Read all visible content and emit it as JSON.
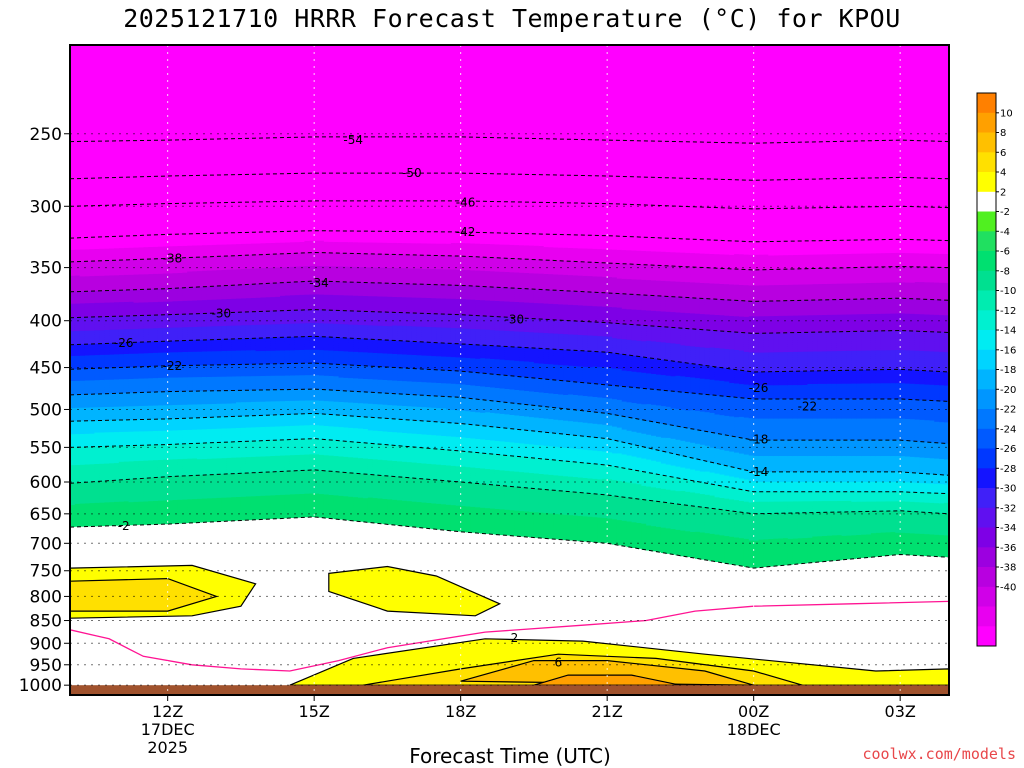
{
  "colors": {
    "bands_low_to_high": [
      "#ff00ff",
      "#e800f0",
      "#d000e8",
      "#b800e0",
      "#9c00e0",
      "#7e00e6",
      "#6010f0",
      "#4020f8",
      "#1414ff",
      "#0038ff",
      "#005aff",
      "#0078ff",
      "#0096ff",
      "#00b4ff",
      "#00d4ff",
      "#00ecf2",
      "#00f0d0",
      "#00ecb0",
      "#00e090",
      "#00e070",
      "#20e060",
      "#50f020",
      "#ffffff",
      "#ffff00",
      "#ffe000",
      "#ffc000",
      "#ffa000",
      "#ff8000"
    ],
    "ground": "#a0522d",
    "freezing_line": "#ff1493"
  },
  "chart_data": {
    "type": "heatmap",
    "title": "2025121710 HRRR Forecast Temperature (°C) for KPOU",
    "xlabel": "Forecast Time (UTC)",
    "ylabel": "",
    "x_ticks": [
      {
        "value": 12,
        "lines": [
          "12Z",
          "17DEC",
          "2025"
        ]
      },
      {
        "value": 15,
        "lines": [
          "15Z"
        ]
      },
      {
        "value": 18,
        "lines": [
          "18Z"
        ]
      },
      {
        "value": 21,
        "lines": [
          "21Z"
        ]
      },
      {
        "value": 24,
        "lines": [
          "00Z",
          "18DEC"
        ]
      },
      {
        "value": 27,
        "lines": [
          "03Z"
        ]
      }
    ],
    "xlim": [
      10,
      28
    ],
    "y_ticks": [
      250,
      300,
      350,
      400,
      450,
      500,
      550,
      600,
      650,
      700,
      750,
      800,
      850,
      900,
      950,
      1000
    ],
    "ylim": [
      200,
      1025
    ],
    "y_scale": "log",
    "grid": true,
    "colorbar_labels": [
      "10",
      "8",
      "6",
      "4",
      "2",
      "-2",
      "-4",
      "-6",
      "-8",
      "-10",
      "-12",
      "-14",
      "-16",
      "-18",
      "-20",
      "-22",
      "-24",
      "-26",
      "-28",
      "-30",
      "-32",
      "-34",
      "-36",
      "-38",
      "-40"
    ],
    "contour_times": [
      10,
      12,
      15,
      18,
      21,
      24,
      27,
      28
    ],
    "contours": [
      {
        "t": -54,
        "p": [
          255,
          254,
          252,
          252,
          254,
          256,
          254,
          255
        ]
      },
      {
        "t": -50,
        "p": [
          280,
          278,
          276,
          276,
          278,
          281,
          279,
          280
        ]
      },
      {
        "t": -46,
        "p": [
          300,
          298,
          296,
          296,
          298,
          302,
          300,
          301
        ]
      },
      {
        "t": -42,
        "p": [
          325,
          322,
          319,
          320,
          323,
          328,
          326,
          327
        ]
      },
      {
        "t": -38,
        "p": [
          345,
          342,
          337,
          340,
          346,
          352,
          349,
          350
        ]
      },
      {
        "t": -34,
        "p": [
          372,
          369,
          362,
          366,
          373,
          381,
          378,
          380
        ]
      },
      {
        "t": -30,
        "p": [
          397,
          394,
          389,
          394,
          402,
          413,
          410,
          412
        ]
      },
      {
        "t": -26,
        "p": [
          425,
          421,
          416,
          424,
          433,
          455,
          452,
          455
        ]
      },
      {
        "t": -22,
        "p": [
          452,
          448,
          445,
          454,
          470,
          487,
          487,
          490
        ]
      },
      {
        "t": -18,
        "p": [
          482,
          478,
          475,
          485,
          505,
          540,
          540,
          545
        ]
      },
      {
        "t": -14,
        "p": [
          515,
          512,
          505,
          518,
          538,
          585,
          585,
          590
        ]
      },
      {
        "t": -10,
        "p": [
          550,
          546,
          538,
          555,
          575,
          615,
          615,
          618
        ]
      },
      {
        "t": -6,
        "p": [
          602,
          592,
          582,
          600,
          620,
          650,
          645,
          650
        ]
      },
      {
        "t": -2,
        "p": [
          672,
          667,
          655,
          680,
          700,
          745,
          720,
          725
        ]
      }
    ],
    "contour_labels": [
      {
        "text": "-54",
        "x": 15.8,
        "p": 254
      },
      {
        "text": "-50",
        "x": 17.0,
        "p": 276
      },
      {
        "text": "-46",
        "x": 18.1,
        "p": 297
      },
      {
        "text": "-42",
        "x": 18.1,
        "p": 320
      },
      {
        "text": "-38",
        "x": 12.1,
        "p": 342
      },
      {
        "text": "-34",
        "x": 15.1,
        "p": 364
      },
      {
        "text": "-30",
        "x": 13.1,
        "p": 393
      },
      {
        "text": "-30",
        "x": 19.1,
        "p": 399
      },
      {
        "text": "-26",
        "x": 11.1,
        "p": 423
      },
      {
        "text": "-26",
        "x": 24.1,
        "p": 474
      },
      {
        "text": "-22",
        "x": 12.1,
        "p": 448
      },
      {
        "text": "-22",
        "x": 25.1,
        "p": 496
      },
      {
        "text": "-18",
        "x": 24.1,
        "p": 539
      },
      {
        "text": "-14",
        "x": 24.1,
        "p": 585
      },
      {
        "text": "-2",
        "x": 11.1,
        "p": 670
      },
      {
        "text": "2",
        "x": 19.1,
        "p": 888
      },
      {
        "text": "6",
        "x": 20.0,
        "p": 945
      }
    ],
    "warm_zones": [
      {
        "t": 2,
        "pts": [
          [
            10,
            745
          ],
          [
            12.5,
            740
          ],
          [
            13.8,
            775
          ],
          [
            13.5,
            820
          ],
          [
            12.5,
            840
          ],
          [
            10,
            845
          ]
        ]
      },
      {
        "t": 2,
        "pts": [
          [
            15.3,
            755
          ],
          [
            16.5,
            742
          ],
          [
            17.5,
            760
          ],
          [
            18.8,
            815
          ],
          [
            18.3,
            840
          ],
          [
            16.5,
            830
          ],
          [
            15.3,
            790
          ]
        ]
      },
      {
        "t": 2,
        "pts": [
          [
            14.5,
            1000
          ],
          [
            15.8,
            935
          ],
          [
            18.5,
            890
          ],
          [
            20.5,
            895
          ],
          [
            23,
            925
          ],
          [
            26.5,
            965
          ],
          [
            28,
            960
          ],
          [
            28,
            1000
          ]
        ]
      },
      {
        "t": 4,
        "pts": [
          [
            10,
            770
          ],
          [
            12,
            765
          ],
          [
            13,
            800
          ],
          [
            12,
            830
          ],
          [
            10,
            830
          ]
        ]
      },
      {
        "t": 4,
        "pts": [
          [
            16,
            1000
          ],
          [
            18,
            960
          ],
          [
            20,
            925
          ],
          [
            22,
            935
          ],
          [
            24,
            965
          ],
          [
            25,
            1000
          ]
        ]
      },
      {
        "t": 6,
        "pts": [
          [
            18,
            990
          ],
          [
            19.5,
            940
          ],
          [
            21,
            940
          ],
          [
            23,
            965
          ],
          [
            24,
            1000
          ]
        ]
      },
      {
        "t": 8,
        "pts": [
          [
            19.5,
            1000
          ],
          [
            20.2,
            975
          ],
          [
            21.5,
            975
          ],
          [
            22.5,
            1000
          ]
        ]
      }
    ],
    "freezing_line": [
      [
        10,
        870
      ],
      [
        10.8,
        890
      ],
      [
        11.5,
        930
      ],
      [
        12.5,
        950
      ],
      [
        13.5,
        960
      ],
      [
        14.5,
        965
      ],
      [
        15.5,
        940
      ],
      [
        16.5,
        910
      ],
      [
        18.5,
        875
      ],
      [
        20.5,
        860
      ],
      [
        21.8,
        850
      ],
      [
        22.8,
        830
      ],
      [
        24,
        820
      ],
      [
        26,
        815
      ],
      [
        28,
        810
      ]
    ],
    "ground_pressure": 1000
  },
  "credit": "coolwx.com/models"
}
